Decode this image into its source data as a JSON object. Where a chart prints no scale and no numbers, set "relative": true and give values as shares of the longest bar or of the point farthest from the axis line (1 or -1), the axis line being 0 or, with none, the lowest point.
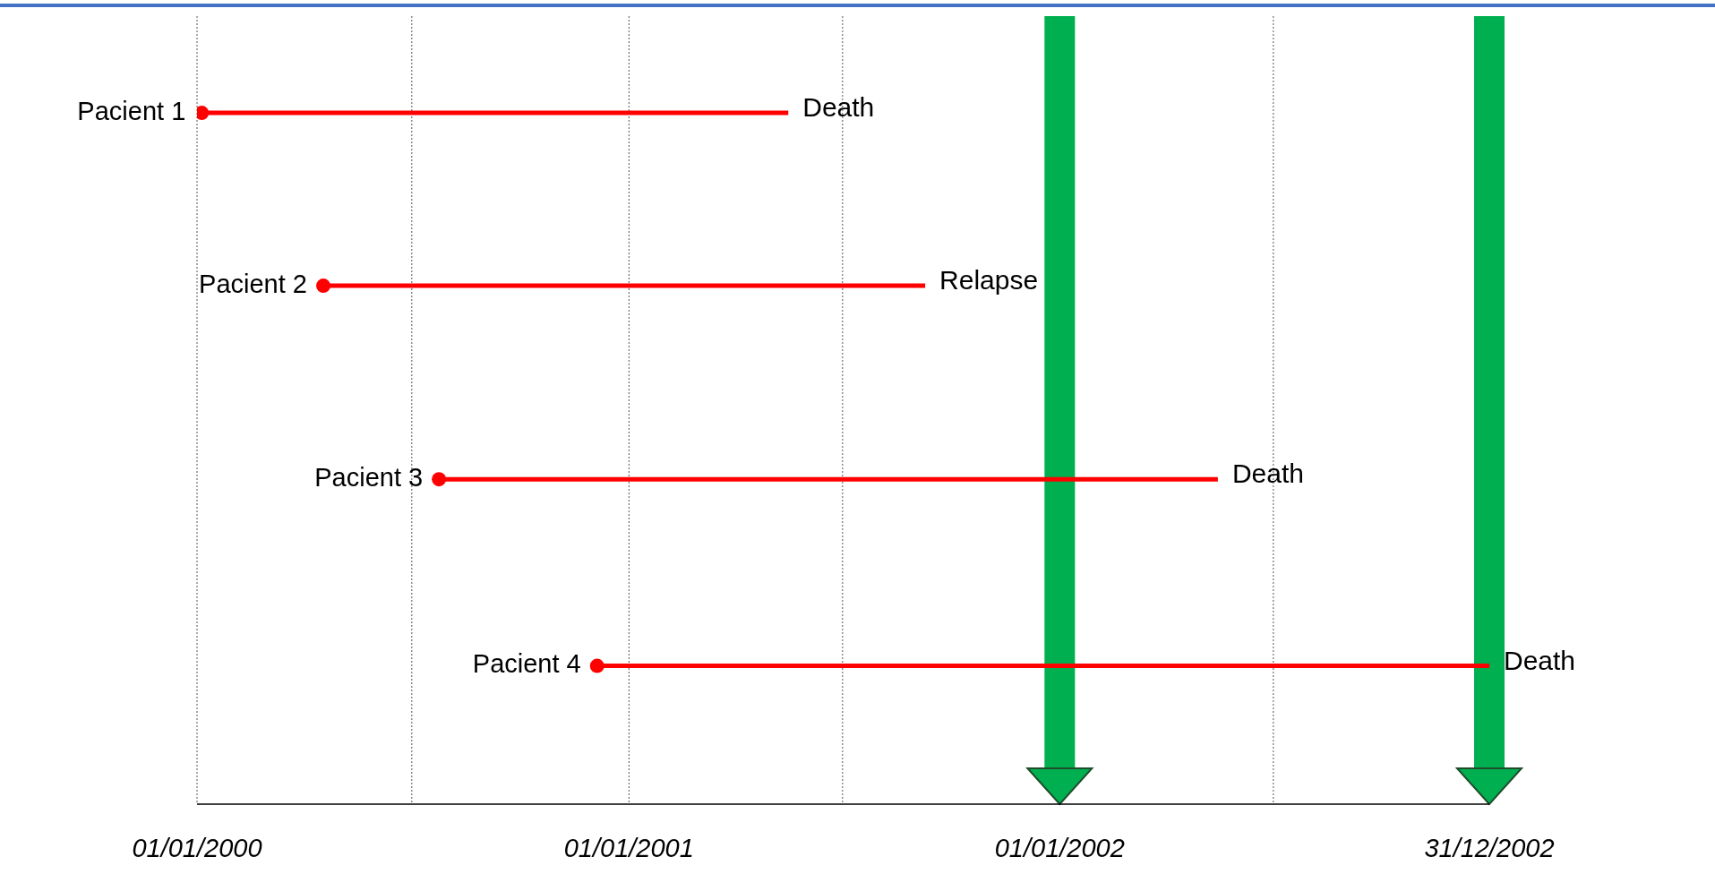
{
  "chart_data": {
    "type": "line",
    "relative": true,
    "series": [
      {
        "name": "Pacient 1",
        "color": "#ff0000",
        "x": [
          "2000-01-05",
          "2001-05-16"
        ],
        "values": [
          1,
          1
        ]
      },
      {
        "name": "Pacient 2",
        "color": "#ff0000",
        "x": [
          "2000-04-17",
          "2001-09-09"
        ],
        "values": [
          0.75,
          0.75
        ]
      },
      {
        "name": "Pacient 3",
        "color": "#ff0000",
        "x": [
          "2000-07-24",
          "2002-05-15"
        ],
        "values": [
          0.47,
          0.47
        ]
      },
      {
        "name": "Pacient 4",
        "color": "#ff0000",
        "x": [
          "2000-12-05",
          "2002-12-31"
        ],
        "values": [
          0.2,
          0.2
        ]
      },
      {
        "type": "scatter",
        "color": "#ff0000",
        "marker": "circle",
        "x": [
          "2000-01-05",
          "2000-04-17",
          "2000-07-24",
          "2000-12-05"
        ],
        "values": [
          1,
          0.75,
          0.47,
          0.2
        ]
      }
    ],
    "xlim": [
      "2000-01-01",
      "2002-12-31"
    ],
    "xticks": [
      {
        "value": "2000-01-01",
        "label": "01/01/2000"
      },
      {
        "value": "2000-07-01",
        "label": null
      },
      {
        "value": "2001-01-01",
        "label": "01/01/2001"
      },
      {
        "value": "2001-07-01",
        "label": null
      },
      {
        "value": "2002-01-01",
        "label": "01/01/2002"
      },
      {
        "value": "2002-07-01",
        "label": null
      },
      {
        "value": "2002-12-31",
        "label": "31/12/2002"
      }
    ],
    "grid": "x",
    "ref_lines": [
      {
        "axis": "x",
        "value": "2002-01-01",
        "color": "#00b050"
      },
      {
        "axis": "x",
        "value": "2002-12-31",
        "color": "#00b050"
      }
    ],
    "annotations": [
      {
        "text": "Death",
        "x": "2001-05-16",
        "y": 1
      },
      {
        "text": "Relapse",
        "x": "2001-09-09",
        "y": 0.75
      },
      {
        "text": "Death",
        "x": "2002-05-15",
        "y": 0.47
      },
      {
        "text": "Death",
        "x": "2002-12-31",
        "y": 0.2
      }
    ]
  }
}
